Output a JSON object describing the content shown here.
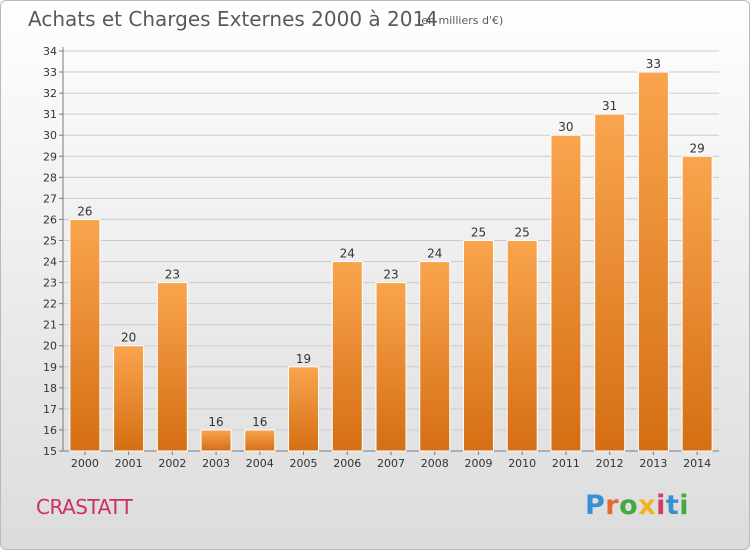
{
  "header": {
    "title": "Achats et Charges Externes 2000 à 2014",
    "unit": "(en milliers d'€)"
  },
  "footer": {
    "commune": "CRASTATT",
    "logo_text": "Proxiti",
    "logo_colors": [
      "#3a8fd0",
      "#e8682b",
      "#45a843",
      "#f2b41e",
      "#d63a66",
      "#3a8fd0",
      "#45a843"
    ]
  },
  "colors": {
    "bar_light": "#f9a54e",
    "bar_dark": "#d56e13",
    "grid": "#cccccc",
    "axis": "#7a7a7a"
  },
  "chart_data": {
    "type": "bar",
    "title": "Achats et Charges Externes 2000 à 2014",
    "subtitle": "(en milliers d'€)",
    "xlabel": "",
    "ylabel": "",
    "categories": [
      "2000",
      "2001",
      "2002",
      "2003",
      "2004",
      "2005",
      "2006",
      "2007",
      "2008",
      "2009",
      "2010",
      "2011",
      "2012",
      "2013",
      "2014"
    ],
    "values": [
      26,
      20,
      23,
      16,
      16,
      19,
      24,
      23,
      24,
      25,
      25,
      30,
      31,
      33,
      29
    ],
    "ylim": [
      15,
      34
    ],
    "yticks": [
      15,
      16,
      17,
      18,
      19,
      20,
      21,
      22,
      23,
      24,
      25,
      26,
      27,
      28,
      29,
      30,
      31,
      32,
      33,
      34
    ],
    "grid": true,
    "legend": "none"
  }
}
